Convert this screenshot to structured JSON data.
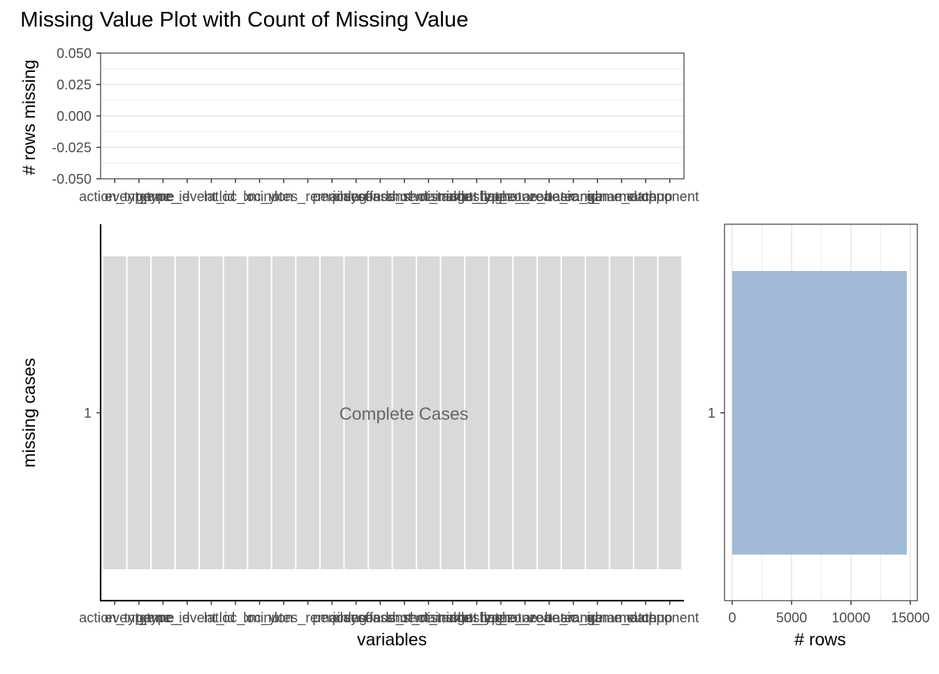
{
  "title": "Missing Value Plot with Count of Missing Value",
  "variables": [
    "action_type",
    "event_type",
    "game_id",
    "game_event_id",
    "lat",
    "loc_x",
    "loc_y",
    "lon",
    "minutes_remaining",
    "period",
    "playoffs",
    "season",
    "seconds_remaining",
    "shot_distance",
    "shot_made_flag",
    "shot_type",
    "shot_zone_area",
    "shot_zone_basic",
    "shot_zone_range",
    "team_id",
    "team_name",
    "game_date",
    "matchup",
    "opponent"
  ],
  "colors": {
    "tile": "#d9d9d9",
    "bar": "#9cb6d4",
    "grid": "#ebebeb",
    "axis": "#333333",
    "tile_label": "#666666",
    "text": "#000000",
    "tick_text": "#4d4d4d"
  },
  "chart_data": [
    {
      "type": "bar",
      "panel": "top",
      "categories_ref": "variables",
      "values": [
        0,
        0,
        0,
        0,
        0,
        0,
        0,
        0,
        0,
        0,
        0,
        0,
        0,
        0,
        0,
        0,
        0,
        0,
        0,
        0,
        0,
        0,
        0,
        0
      ],
      "ylabel": "# rows missing",
      "ylim": [
        -0.05,
        0.05
      ],
      "yticks": [
        "0.050",
        "0.025",
        "0.000",
        "-0.025",
        "-0.050"
      ],
      "grid": true
    },
    {
      "type": "heatmap",
      "panel": "main",
      "categories_ref": "variables",
      "rows": [
        "1"
      ],
      "cells_missing": [
        false,
        false,
        false,
        false,
        false,
        false,
        false,
        false,
        false,
        false,
        false,
        false,
        false,
        false,
        false,
        false,
        false,
        false,
        false,
        false,
        false,
        false,
        false,
        false
      ],
      "annotation": "Complete Cases",
      "xlabel": "variables",
      "ylabel": "missing cases"
    },
    {
      "type": "bar",
      "panel": "right",
      "orientation": "horizontal",
      "categories": [
        "1"
      ],
      "values": [
        14700
      ],
      "xlabel": "# rows",
      "xlim": [
        0,
        15000
      ],
      "xticks": [
        "0",
        "5000",
        "10000",
        "15000"
      ],
      "grid": true
    }
  ]
}
